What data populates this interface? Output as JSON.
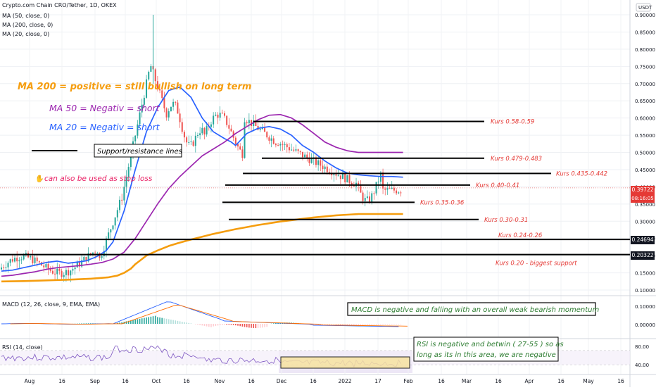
{
  "header": {
    "symbol": "Crypto.com Chain CRO/Tether, 1D, OKEX",
    "ma_labels": [
      "MA (50, close, 0)",
      "MA (200, close, 0)",
      "MA (20, close, 0)"
    ],
    "currency": "USDT"
  },
  "annotations": {
    "ma200": "MA 200 = positive = still bullish on long term",
    "ma50": "MA 50 = Negativ = short",
    "ma20": "MA 20 = Negativ = short",
    "legend_lines": "Support/resistance lines",
    "stop_loss": "can also be used as stop loss",
    "macd_note": "MACD is negative and falling with an overall weak bearish momentum",
    "rsi_note_1": "RSI is negative and betwin ( 27-55 ) so as",
    "rsi_note_2": "long as its in this area, we are negative"
  },
  "levels": [
    {
      "label": "Kurs 0.58-0.59",
      "price": 0.59
    },
    {
      "label": "Kurs 0.479-0.483",
      "price": 0.483
    },
    {
      "label": "Kurs 0.435-0.442",
      "price": 0.439
    },
    {
      "label": "Kurs 0.40-0.41",
      "price": 0.405
    },
    {
      "label": "Kurs 0.35-0.36",
      "price": 0.355
    },
    {
      "label": "Kurs 0.30-0.31",
      "price": 0.305
    },
    {
      "label": "Kurs 0.24-0.26",
      "price": 0.247
    },
    {
      "label": "Kurs 0.20 - biggest support",
      "price": 0.203
    }
  ],
  "price_tags": {
    "current": "0.39722",
    "countdown": "08:16:05",
    "level_1": "0.24694",
    "level_2": "0.20322"
  },
  "indicators": {
    "macd_label": "MACD (12, 26, close, 9, EMA, EMA)",
    "rsi_label": "RSI (14, close)"
  },
  "chart_data": {
    "type": "line",
    "title": "Crypto.com Chain CRO/Tether, 1D, OKEX",
    "y_ticks": [
      "0.90000",
      "0.85000",
      "0.80000",
      "0.75000",
      "0.70000",
      "0.65000",
      "0.60000",
      "0.55000",
      "0.50000",
      "0.45000",
      "0.40000",
      "0.35000",
      "0.30000",
      "0.25000",
      "0.20000",
      "0.15000",
      "0.10000"
    ],
    "ylim": [
      0.1,
      0.9
    ],
    "x_ticks": [
      "Aug",
      "16",
      "Sep",
      "16",
      "Oct",
      "16",
      "Nov",
      "16",
      "Dec",
      "16",
      "2022",
      "17",
      "Feb",
      "16",
      "Mar",
      "16",
      "Apr",
      "16",
      "May",
      "16"
    ],
    "series": [
      {
        "name": "MA (20, close, 0)",
        "color": "#2962ff",
        "x": [
          0,
          5,
          10,
          15,
          20,
          25,
          30,
          35,
          38,
          40,
          42,
          44,
          47,
          50,
          55,
          60,
          65,
          70,
          75,
          80,
          85,
          90,
          95,
          100,
          103,
          105,
          110,
          115,
          120,
          125,
          130,
          135,
          140,
          145,
          150,
          155,
          160,
          165,
          170,
          175,
          180
        ],
        "values": [
          0.155,
          0.158,
          0.165,
          0.172,
          0.18,
          0.184,
          0.178,
          0.182,
          0.185,
          0.19,
          0.195,
          0.202,
          0.215,
          0.24,
          0.33,
          0.45,
          0.56,
          0.63,
          0.68,
          0.69,
          0.66,
          0.6,
          0.56,
          0.54,
          0.53,
          0.52,
          0.555,
          0.57,
          0.575,
          0.568,
          0.55,
          0.52,
          0.5,
          0.475,
          0.455,
          0.44,
          0.435,
          0.432,
          0.43,
          0.43,
          0.428
        ]
      },
      {
        "name": "MA (50, close, 0)",
        "color": "#9c27b0",
        "x": [
          0,
          5,
          10,
          15,
          20,
          25,
          30,
          35,
          40,
          45,
          50,
          55,
          60,
          65,
          70,
          75,
          80,
          85,
          90,
          95,
          100,
          105,
          110,
          115,
          120,
          125,
          130,
          135,
          140,
          145,
          150,
          155,
          160,
          165,
          170,
          175,
          180
        ],
        "values": [
          0.14,
          0.143,
          0.148,
          0.153,
          0.16,
          0.165,
          0.168,
          0.171,
          0.175,
          0.18,
          0.19,
          0.21,
          0.25,
          0.3,
          0.35,
          0.395,
          0.43,
          0.46,
          0.49,
          0.51,
          0.53,
          0.555,
          0.575,
          0.595,
          0.608,
          0.61,
          0.6,
          0.58,
          0.555,
          0.53,
          0.515,
          0.505,
          0.5,
          0.5,
          0.5,
          0.5,
          0.5
        ]
      },
      {
        "name": "MA (200, close, 0)",
        "color": "#f59d0e",
        "x": [
          0,
          10,
          20,
          30,
          40,
          48,
          52,
          55,
          58,
          60,
          62,
          65,
          70,
          75,
          80,
          85,
          90,
          95,
          100,
          105,
          110,
          115,
          120,
          125,
          130,
          135,
          140,
          145,
          150,
          155,
          160,
          165,
          170,
          175,
          180
        ],
        "values": [
          0.125,
          0.126,
          0.128,
          0.13,
          0.133,
          0.137,
          0.142,
          0.15,
          0.162,
          0.175,
          0.185,
          0.2,
          0.215,
          0.228,
          0.238,
          0.247,
          0.255,
          0.263,
          0.27,
          0.277,
          0.283,
          0.289,
          0.294,
          0.299,
          0.303,
          0.307,
          0.311,
          0.314,
          0.317,
          0.319,
          0.321,
          0.321,
          0.321,
          0.321,
          0.321
        ]
      }
    ]
  }
}
